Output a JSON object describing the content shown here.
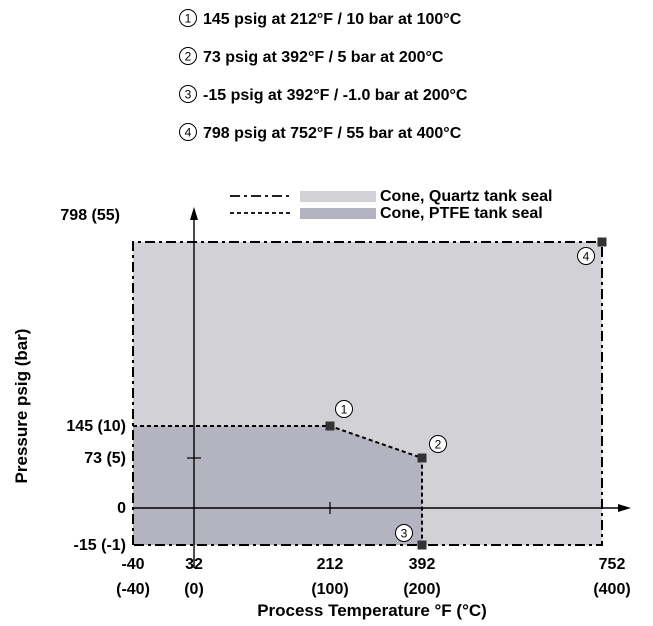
{
  "notes": [
    {
      "num": "1",
      "text": "145 psig at 212°F / 10 bar at 100°C"
    },
    {
      "num": "2",
      "text": "73 psig at 392°F / 5 bar at 200°C"
    },
    {
      "num": "3",
      "text": "-15 psig at 392°F / -1.0 bar at 200°C"
    },
    {
      "num": "4",
      "text": "798 psig at 752°F / 55 bar at 400°C"
    }
  ],
  "chart_data": {
    "type": "area",
    "xlabel": "Process Temperature °F (°C)",
    "ylabel": "Pressure psig (bar)",
    "xlim": [
      -40,
      752
    ],
    "ylim": [
      -15,
      798
    ],
    "x_ticks": [
      {
        "value": -40,
        "line1": "-40",
        "line2": "(-40)"
      },
      {
        "value": 32,
        "line1": "32",
        "line2": "(0)"
      },
      {
        "value": 212,
        "line1": "212",
        "line2": "(100)"
      },
      {
        "value": 392,
        "line1": "392",
        "line2": "(200)"
      },
      {
        "value": 752,
        "line1": "752",
        "line2": "(400)"
      }
    ],
    "y_ticks": [
      {
        "value": 798,
        "label": "798 (55)"
      },
      {
        "value": 145,
        "label": "145 (10)"
      },
      {
        "value": 73,
        "label": "73 (5)"
      },
      {
        "value": 0,
        "label": "0"
      },
      {
        "value": -15,
        "label": "-15 (-1)"
      }
    ],
    "series": [
      {
        "name": "Cone, Quartz tank seal",
        "line_style": "dash-dot",
        "fill_color": "#d2d2d6",
        "points": [
          [
            -40,
            -15
          ],
          [
            -40,
            798
          ],
          [
            752,
            798
          ],
          [
            752,
            -15
          ]
        ]
      },
      {
        "name": "Cone, PTFE tank seal",
        "line_style": "dashed",
        "fill_color": "#b4b4c0",
        "points": [
          [
            -40,
            -15
          ],
          [
            -40,
            145
          ],
          [
            212,
            145
          ],
          [
            392,
            73
          ],
          [
            392,
            -15
          ]
        ]
      }
    ],
    "markers": [
      {
        "label": "1",
        "x": 212,
        "y": 145
      },
      {
        "label": "2",
        "x": 392,
        "y": 73
      },
      {
        "label": "3",
        "x": 392,
        "y": -15
      },
      {
        "label": "4",
        "x": 752,
        "y": 798
      }
    ]
  }
}
